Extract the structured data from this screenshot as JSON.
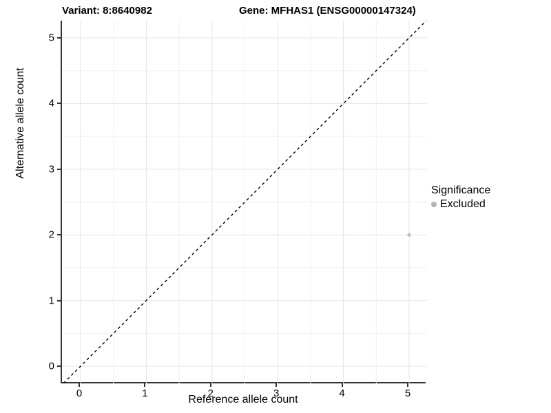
{
  "titles": {
    "variant": "Variant: 8:8640982",
    "gene": "Gene: MFHAS1 (ENSG00000147324)"
  },
  "colors": {
    "axis_line": "#333333",
    "grid_major": "#e4e4e4",
    "grid_minor": "#f0f0f0",
    "point": "#bdbdbd",
    "legend_swatch": "#b3b3b3",
    "reference_line": "#000000",
    "background": "#ffffff"
  },
  "chart_data": {
    "type": "scatter",
    "title": "Variant: 8:8640982   Gene: MFHAS1 (ENSG00000147324)",
    "xlabel": "Reference allele count",
    "ylabel": "Alternative allele count",
    "xlim": [
      -0.28,
      5.27
    ],
    "ylim": [
      -0.26,
      5.26
    ],
    "x_ticks": [
      0,
      1,
      2,
      3,
      4,
      5
    ],
    "y_ticks": [
      0,
      1,
      2,
      3,
      4,
      5
    ],
    "grid": "major and minor gridlines, white background",
    "points": [
      {
        "x": 5,
        "y": 2,
        "series": "Excluded"
      }
    ],
    "reference_line": {
      "type": "identity y=x",
      "style": "dashed",
      "color": "#000000"
    },
    "legend": {
      "title": "Significance",
      "position": "right",
      "entries": [
        {
          "label": "Excluded",
          "color": "#bdbdbd"
        }
      ]
    }
  }
}
